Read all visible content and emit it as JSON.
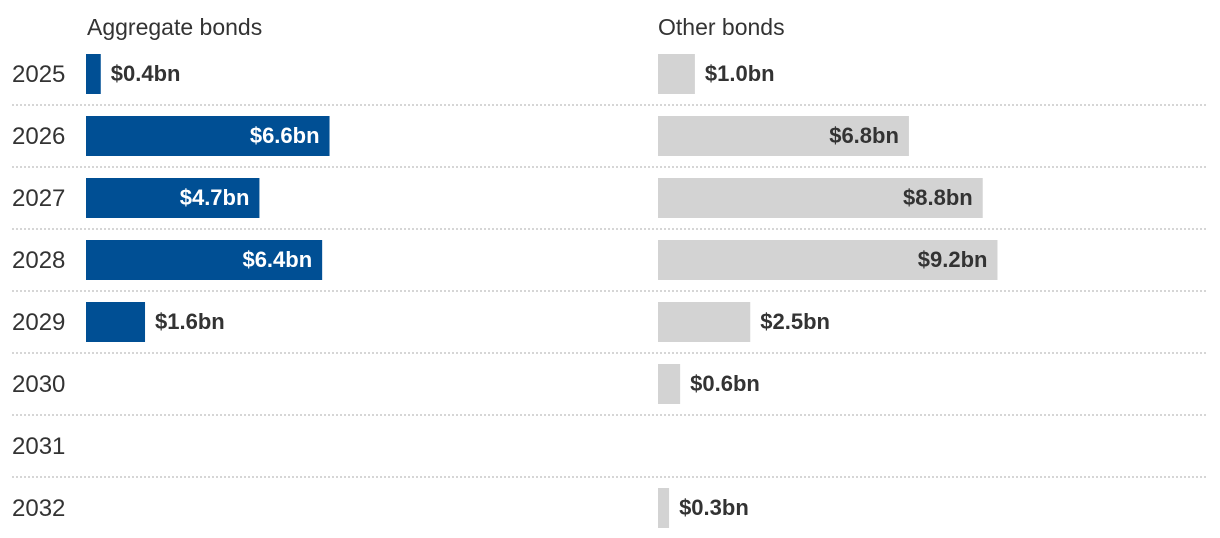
{
  "chart_data": {
    "type": "bar",
    "orientation": "horizontal",
    "categories": [
      "2025",
      "2026",
      "2027",
      "2028",
      "2029",
      "2030",
      "2031",
      "2032"
    ],
    "series": [
      {
        "name": "Aggregate bonds",
        "values": [
          0.4,
          6.6,
          4.7,
          6.4,
          1.6,
          null,
          null,
          null
        ],
        "labels": [
          "$0.4bn",
          "$6.6bn",
          "$4.7bn",
          "$6.4bn",
          "$1.6bn",
          "",
          "",
          ""
        ],
        "color": "#004f94"
      },
      {
        "name": "Other bonds",
        "values": [
          1.0,
          6.8,
          8.8,
          9.2,
          2.5,
          0.6,
          null,
          0.3
        ],
        "labels": [
          "$1.0bn",
          "$6.8bn",
          "$8.8bn",
          "$9.2bn",
          "$2.5bn",
          "$0.6bn",
          "",
          "$0.3bn"
        ],
        "color": "#d3d3d3"
      }
    ],
    "label_colors": {
      "inside_dark_bar": "#ffffff",
      "inside_light_bar": "#333333",
      "outside": "#333333"
    },
    "grid": false,
    "row_separators": "dotted"
  }
}
